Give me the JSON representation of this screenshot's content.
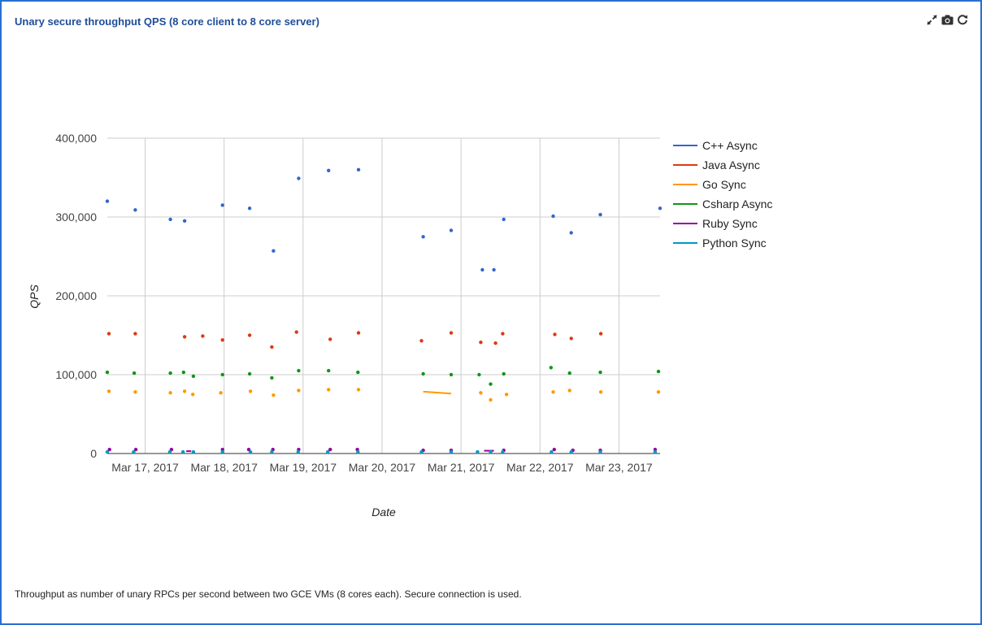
{
  "panel": {
    "title": "Unary secure throughput QPS (8 core client to 8 core server)",
    "caption": "Throughput as number of unary RPCs per second between two GCE VMs (8 cores each). Secure connection is used.",
    "tools": [
      {
        "name": "collapse-icon",
        "glyph": "⤡"
      },
      {
        "name": "camera-icon",
        "glyph": "📷"
      },
      {
        "name": "refresh-icon",
        "glyph": "↻"
      }
    ]
  },
  "chart_data": {
    "type": "scatter",
    "title": "",
    "xlabel": "Date",
    "ylabel": "QPS",
    "xlim": [
      "2017-03-16T12:30",
      "2017-03-23T12:30"
    ],
    "ylim": [
      0,
      400000
    ],
    "yticks": [
      0,
      100000,
      200000,
      300000,
      400000
    ],
    "ytick_labels": [
      "0",
      "100,000",
      "200,000",
      "300,000",
      "400,000"
    ],
    "xticks": [
      "2017-03-17",
      "2017-03-18",
      "2017-03-19",
      "2017-03-20",
      "2017-03-21",
      "2017-03-22",
      "2017-03-23"
    ],
    "xtick_labels": [
      "Mar 17, 2017",
      "Mar 18, 2017",
      "Mar 19, 2017",
      "Mar 20, 2017",
      "Mar 21, 2017",
      "Mar 22, 2017",
      "Mar 23, 2017"
    ],
    "grid": true,
    "legend_position": "right",
    "series": [
      {
        "name": "C++ Async",
        "color": "#3366cc",
        "points": [
          [
            "2017-03-16T12:30",
            320000
          ],
          [
            "2017-03-16T21:00",
            309000
          ],
          [
            "2017-03-17T07:40",
            297000
          ],
          [
            "2017-03-17T12:00",
            295000
          ],
          [
            "2017-03-17T23:30",
            315000
          ],
          [
            "2017-03-18T07:45",
            311000
          ],
          [
            "2017-03-18T15:00",
            257000
          ],
          [
            "2017-03-18T22:40",
            349000
          ],
          [
            "2017-03-19T07:45",
            359000
          ],
          [
            "2017-03-19T16:50",
            360000
          ],
          [
            "2017-03-20T12:30",
            275000
          ],
          [
            "2017-03-20T21:00",
            283000
          ],
          [
            "2017-03-21T06:30",
            233000
          ],
          [
            "2017-03-21T10:00",
            233000
          ],
          [
            "2017-03-21T13:00",
            297000
          ],
          [
            "2017-03-22T04:00",
            301000
          ],
          [
            "2017-03-22T09:30",
            280000
          ],
          [
            "2017-03-22T18:20",
            303000
          ],
          [
            "2017-03-23T12:30",
            311000
          ]
        ]
      },
      {
        "name": "Java Async",
        "color": "#dc3912",
        "points": [
          [
            "2017-03-16T13:00",
            152000
          ],
          [
            "2017-03-16T21:00",
            152000
          ],
          [
            "2017-03-17T12:00",
            148000
          ],
          [
            "2017-03-17T17:30",
            149000
          ],
          [
            "2017-03-17T23:30",
            144000
          ],
          [
            "2017-03-18T07:45",
            150000
          ],
          [
            "2017-03-18T14:30",
            135000
          ],
          [
            "2017-03-18T22:00",
            154000
          ],
          [
            "2017-03-19T08:15",
            145000
          ],
          [
            "2017-03-19T16:50",
            153000
          ],
          [
            "2017-03-20T12:00",
            143000
          ],
          [
            "2017-03-20T21:00",
            153000
          ],
          [
            "2017-03-21T06:00",
            141000
          ],
          [
            "2017-03-21T10:30",
            140000
          ],
          [
            "2017-03-21T12:40",
            152000
          ],
          [
            "2017-03-22T04:30",
            151000
          ],
          [
            "2017-03-22T09:30",
            146000
          ],
          [
            "2017-03-22T18:30",
            152000
          ]
        ]
      },
      {
        "name": "Go Sync",
        "color": "#ff9900",
        "points": [
          [
            "2017-03-16T13:00",
            79000
          ],
          [
            "2017-03-16T21:00",
            78000
          ],
          [
            "2017-03-17T07:40",
            77000
          ],
          [
            "2017-03-17T12:00",
            79000
          ],
          [
            "2017-03-17T14:30",
            75000
          ],
          [
            "2017-03-17T23:00",
            77000
          ],
          [
            "2017-03-18T08:00",
            79000
          ],
          [
            "2017-03-18T15:00",
            74000
          ],
          [
            "2017-03-18T22:40",
            80000
          ],
          [
            "2017-03-19T07:45",
            81000
          ],
          [
            "2017-03-19T16:50",
            81000
          ],
          [
            "2017-03-21T06:00",
            77000
          ],
          [
            "2017-03-21T09:00",
            68000
          ],
          [
            "2017-03-21T13:50",
            75000
          ],
          [
            "2017-03-22T04:00",
            78000
          ],
          [
            "2017-03-22T09:00",
            80000
          ],
          [
            "2017-03-22T18:30",
            78000
          ],
          [
            "2017-03-23T12:00",
            78000
          ]
        ],
        "lines": [
          [
            [
              "2017-03-20T12:30",
              78500
            ],
            [
              "2017-03-20T21:00",
              76000
            ]
          ]
        ]
      },
      {
        "name": "Csharp Async",
        "color": "#109618",
        "points": [
          [
            "2017-03-16T12:30",
            103000
          ],
          [
            "2017-03-16T20:40",
            102000
          ],
          [
            "2017-03-17T07:40",
            102000
          ],
          [
            "2017-03-17T11:40",
            103000
          ],
          [
            "2017-03-17T14:40",
            98000
          ],
          [
            "2017-03-17T23:30",
            100000
          ],
          [
            "2017-03-18T07:45",
            101000
          ],
          [
            "2017-03-18T14:30",
            96000
          ],
          [
            "2017-03-18T22:40",
            105000
          ],
          [
            "2017-03-19T07:45",
            105000
          ],
          [
            "2017-03-19T16:40",
            103000
          ],
          [
            "2017-03-20T12:30",
            101000
          ],
          [
            "2017-03-20T21:00",
            100000
          ],
          [
            "2017-03-21T05:30",
            100000
          ],
          [
            "2017-03-21T09:00",
            88000
          ],
          [
            "2017-03-21T13:00",
            101000
          ],
          [
            "2017-03-22T03:20",
            109000
          ],
          [
            "2017-03-22T09:00",
            102000
          ],
          [
            "2017-03-22T18:20",
            103000
          ],
          [
            "2017-03-23T12:00",
            104000
          ]
        ]
      },
      {
        "name": "Ruby Sync",
        "color": "#990099",
        "points": [
          [
            "2017-03-16T13:10",
            5000
          ],
          [
            "2017-03-16T21:10",
            5000
          ],
          [
            "2017-03-17T08:00",
            5000
          ],
          [
            "2017-03-17T23:30",
            5000
          ],
          [
            "2017-03-18T07:30",
            5000
          ],
          [
            "2017-03-18T14:50",
            5000
          ],
          [
            "2017-03-18T22:40",
            5000
          ],
          [
            "2017-03-19T08:15",
            5000
          ],
          [
            "2017-03-19T16:30",
            5000
          ],
          [
            "2017-03-20T12:30",
            4000
          ],
          [
            "2017-03-20T21:00",
            4000
          ],
          [
            "2017-03-21T13:00",
            4000
          ],
          [
            "2017-03-22T04:20",
            5000
          ],
          [
            "2017-03-22T10:00",
            4000
          ],
          [
            "2017-03-22T18:20",
            4000
          ],
          [
            "2017-03-23T11:00",
            5000
          ]
        ],
        "lines": [
          [
            [
              "2017-03-17T12:30",
              3000
            ],
            [
              "2017-03-17T14:00",
              3000
            ]
          ],
          [
            [
              "2017-03-21T07:00",
              3500
            ],
            [
              "2017-03-21T10:00",
              3500
            ]
          ]
        ]
      },
      {
        "name": "Python Sync",
        "color": "#0099c6",
        "points": [
          [
            "2017-03-16T12:30",
            2000
          ],
          [
            "2017-03-16T20:30",
            2000
          ],
          [
            "2017-03-17T07:30",
            2000
          ],
          [
            "2017-03-17T11:30",
            2000
          ],
          [
            "2017-03-17T14:40",
            2000
          ],
          [
            "2017-03-17T23:30",
            2000
          ],
          [
            "2017-03-18T08:00",
            2000
          ],
          [
            "2017-03-18T14:30",
            2000
          ],
          [
            "2017-03-18T22:30",
            2000
          ],
          [
            "2017-03-19T07:30",
            2000
          ],
          [
            "2017-03-19T16:40",
            2000
          ],
          [
            "2017-03-20T12:00",
            2000
          ],
          [
            "2017-03-20T21:00",
            2000
          ],
          [
            "2017-03-21T05:00",
            2000
          ],
          [
            "2017-03-21T09:00",
            2000
          ],
          [
            "2017-03-21T12:40",
            2000
          ],
          [
            "2017-03-22T03:30",
            2000
          ],
          [
            "2017-03-22T09:30",
            2000
          ],
          [
            "2017-03-22T18:20",
            2000
          ],
          [
            "2017-03-23T11:00",
            2000
          ]
        ]
      }
    ]
  }
}
